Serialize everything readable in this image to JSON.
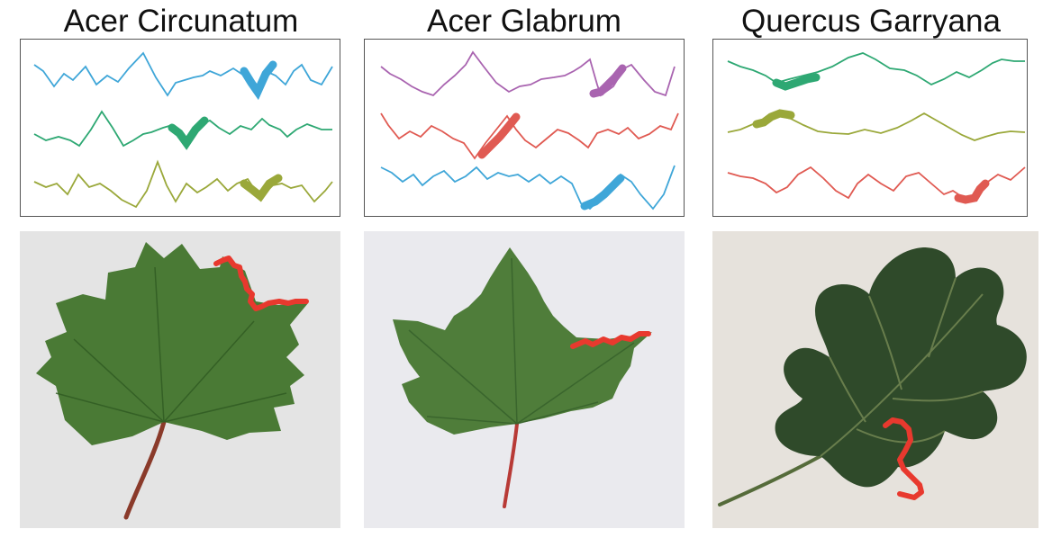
{
  "figure": {
    "species": [
      {
        "id": "acer-circunatum",
        "name": "Acer Circunatum",
        "signal_colors": [
          "#3fa6d8",
          "#2ea873",
          "#9aa83a"
        ],
        "highlight_color": "#e8392e",
        "leaf_color": "#4a7a35"
      },
      {
        "id": "acer-glabrum",
        "name": "Acer Glabrum",
        "signal_colors": [
          "#a964b0",
          "#e05a52",
          "#3fa6d8"
        ],
        "highlight_color": "#e8392e",
        "leaf_color": "#4f7d3a"
      },
      {
        "id": "quercus-garryana",
        "name": "Quercus Garryana",
        "signal_colors": [
          "#2ea873",
          "#9aa83a",
          "#e05a52"
        ],
        "highlight_color": "#e8392e",
        "leaf_color": "#2f4a2a"
      }
    ]
  }
}
